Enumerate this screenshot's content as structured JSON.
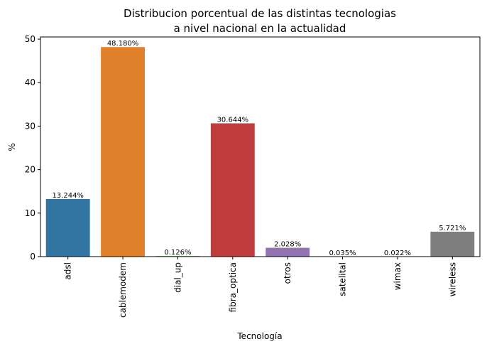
{
  "chart_data": {
    "type": "bar",
    "title_line1": "Distribucion porcentual de las distintas tecnologias",
    "title_line2": "a nivel nacional en la actualidad",
    "xlabel": "Tecnología",
    "ylabel": "%",
    "ylim": [
      0,
      50.5
    ],
    "yticks": [
      0,
      10,
      20,
      30,
      40,
      50
    ],
    "grid": false,
    "categories": [
      "adsl",
      "cablemodem",
      "dial_up",
      "fibra_optica",
      "otros",
      "satelital",
      "wimax",
      "wireless"
    ],
    "values": [
      13.244,
      48.18,
      0.126,
      30.644,
      2.028,
      0.035,
      0.022,
      5.721
    ],
    "data_labels": [
      "13.244%",
      "48.180%",
      "0.126%",
      "30.644%",
      "2.028%",
      "0.035%",
      "0.022%",
      "5.721%"
    ],
    "colors": [
      "#3274a1",
      "#e1812c",
      "#3a923a",
      "#c03d3e",
      "#9372b2",
      "#845b53",
      "#d684bd",
      "#7f7f7f"
    ]
  }
}
